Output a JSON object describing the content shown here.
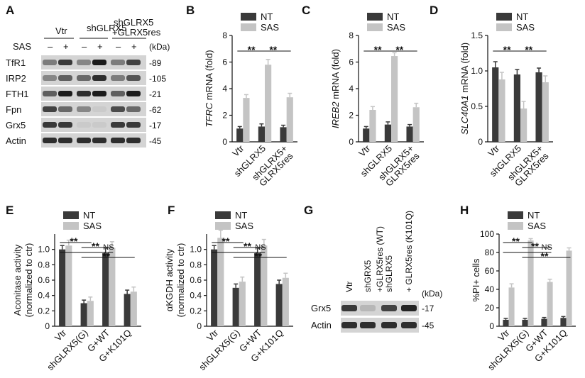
{
  "panel_letters": [
    "A",
    "B",
    "C",
    "D",
    "E",
    "F",
    "G",
    "H"
  ],
  "colors": {
    "nt": "#3a3a3a",
    "sas": "#c4c4c4",
    "band": "#111111",
    "blot_bg": "#d4d4d4"
  },
  "blotA": {
    "group_labels": [
      "Vtr",
      "shGLRX5",
      "shGLRX5",
      "+GLRX5res"
    ],
    "treatment_label": "SAS",
    "treatment_marks": [
      "–",
      "+",
      "–",
      "+",
      "–",
      "+"
    ],
    "unit": "(kDa)",
    "rows": [
      {
        "label": "TfR1",
        "kda": "89",
        "intensity": [
          0.45,
          0.8,
          0.4,
          0.95,
          0.45,
          0.75
        ]
      },
      {
        "label": "IRP2",
        "kda": "105",
        "intensity": [
          0.4,
          0.6,
          0.55,
          0.85,
          0.45,
          0.65
        ]
      },
      {
        "label": "FTH1",
        "kda": "21",
        "intensity": [
          0.6,
          0.95,
          0.85,
          0.95,
          0.6,
          0.95
        ]
      },
      {
        "label": "Fpn",
        "kda": "62",
        "intensity": [
          0.75,
          0.55,
          0.4,
          0.05,
          0.7,
          0.55
        ]
      },
      {
        "label": "Grx5",
        "kda": "17",
        "intensity": [
          0.8,
          0.8,
          0.05,
          0.05,
          0.8,
          0.8
        ]
      },
      {
        "label": "Actin",
        "kda": "45",
        "intensity": [
          0.85,
          0.85,
          0.85,
          0.85,
          0.85,
          0.85
        ]
      }
    ]
  },
  "blotG": {
    "lane_labels": [
      "Vtr",
      "shGRX5",
      "shGLRX5\n+GLRX5res (WT)",
      "+ GLRX5res (K101Q)"
    ],
    "unit": "(kDa)",
    "rows": [
      {
        "label": "Grx5",
        "kda": "17",
        "intensity": [
          0.8,
          0.15,
          0.75,
          0.9
        ]
      },
      {
        "label": "Actin",
        "kda": "45",
        "intensity": [
          0.85,
          0.85,
          0.85,
          0.85
        ]
      }
    ]
  },
  "legend": {
    "nt": "NT",
    "sas": "SAS"
  },
  "significance": {
    "double": "**",
    "ns": "NS"
  },
  "chart_data": [
    {
      "id": "B",
      "type": "bar",
      "categories": [
        "Vtr",
        "shGLRX5",
        "shGLRX5+\nGLRX5res"
      ],
      "ylabel_italic": "TFRC",
      "ylabel_rest": " mRNA (fold)",
      "ylim": [
        0,
        8
      ],
      "yticks": [
        0,
        2,
        4,
        6,
        8
      ],
      "series": [
        {
          "name": "NT",
          "values": [
            1.0,
            1.15,
            1.1
          ],
          "errors": [
            0.15,
            0.2,
            0.15
          ]
        },
        {
          "name": "SAS",
          "values": [
            3.3,
            5.8,
            3.35
          ],
          "errors": [
            0.25,
            0.4,
            0.3
          ]
        }
      ],
      "annotations": [
        {
          "text": "**",
          "from": 0,
          "to": 1
        },
        {
          "text": "**",
          "from": 1,
          "to": 2
        }
      ]
    },
    {
      "id": "C",
      "type": "bar",
      "categories": [
        "Vtr",
        "shGLRX5",
        "shGLRX5+\nGLRX5res"
      ],
      "ylabel_italic": "IREB2",
      "ylabel_rest": " mRNA (fold)",
      "ylim": [
        0,
        8
      ],
      "yticks": [
        0,
        2,
        4,
        6,
        8
      ],
      "series": [
        {
          "name": "NT",
          "values": [
            1.0,
            1.3,
            1.15
          ],
          "errors": [
            0.15,
            0.2,
            0.15
          ]
        },
        {
          "name": "SAS",
          "values": [
            2.4,
            6.45,
            2.6
          ],
          "errors": [
            0.25,
            0.25,
            0.3
          ]
        }
      ],
      "annotations": [
        {
          "text": "**",
          "from": 0,
          "to": 1
        },
        {
          "text": "**",
          "from": 1,
          "to": 2
        }
      ]
    },
    {
      "id": "D",
      "type": "bar",
      "categories": [
        "Vtr",
        "shGLRX5",
        "shGLRX5+\nGLRX5res"
      ],
      "ylabel_italic": "SLC40A1",
      "ylabel_rest": " mRNA (fold)",
      "ylim": [
        0,
        1.5
      ],
      "yticks": [
        0,
        0.5,
        1.0,
        1.5
      ],
      "series": [
        {
          "name": "NT",
          "values": [
            1.05,
            0.95,
            0.98
          ],
          "errors": [
            0.08,
            0.07,
            0.06
          ]
        },
        {
          "name": "SAS",
          "values": [
            0.88,
            0.47,
            0.84
          ],
          "errors": [
            0.1,
            0.1,
            0.09
          ]
        }
      ],
      "annotations": [
        {
          "text": "**",
          "from": 0,
          "to": 1
        },
        {
          "text": "**",
          "from": 1,
          "to": 2
        }
      ]
    },
    {
      "id": "E",
      "type": "bar",
      "categories": [
        "Vtr",
        "shGLRX5(G)",
        "G+WT",
        "G+K101Q"
      ],
      "ylabel_lines": [
        "Aconitase activity",
        "(normalized to ctr)"
      ],
      "ylim": [
        0,
        1.2
      ],
      "yticks": [
        0,
        0.2,
        0.4,
        0.6,
        0.8,
        1.0
      ],
      "series": [
        {
          "name": "NT",
          "values": [
            1.0,
            0.3,
            0.95,
            0.42
          ],
          "errors": [
            0.05,
            0.04,
            0.07,
            0.05
          ]
        },
        {
          "name": "SAS",
          "values": [
            1.05,
            0.33,
            1.02,
            0.45
          ],
          "errors": [
            0.07,
            0.05,
            0.08,
            0.06
          ]
        }
      ],
      "annotations": [
        {
          "text": "**",
          "from": 0,
          "to": 1
        },
        {
          "text": "**",
          "from": 1,
          "to": 2
        },
        {
          "text": "NS",
          "from": 0,
          "to": 2
        },
        {
          "text": "**",
          "from": 1,
          "to": 3
        }
      ]
    },
    {
      "id": "F",
      "type": "bar",
      "categories": [
        "Vtr",
        "shGLRX5(G)",
        "G+WT",
        "G+K101Q"
      ],
      "ylabel_lines": [
        "αKGDH activity",
        "(normalized to ctr)"
      ],
      "ylim": [
        0,
        1.2
      ],
      "yticks": [
        0,
        0.2,
        0.4,
        0.6,
        0.8,
        1.0
      ],
      "series": [
        {
          "name": "NT",
          "values": [
            1.0,
            0.5,
            0.95,
            0.55
          ],
          "errors": [
            0.05,
            0.05,
            0.07,
            0.05
          ]
        },
        {
          "name": "SAS",
          "values": [
            1.15,
            0.58,
            1.05,
            0.63
          ],
          "errors": [
            0.1,
            0.06,
            0.08,
            0.06
          ]
        }
      ],
      "annotations": [
        {
          "text": "**",
          "from": 0,
          "to": 1
        },
        {
          "text": "**",
          "from": 1,
          "to": 2
        },
        {
          "text": "NS",
          "from": 0,
          "to": 2
        },
        {
          "text": "**",
          "from": 1,
          "to": 3
        }
      ]
    },
    {
      "id": "H",
      "type": "bar",
      "categories": [
        "Vtr",
        "shGLRX5(G)",
        "G+WT",
        "G+K101Q"
      ],
      "ylabel_lines": [
        "%PI+ cells"
      ],
      "ylim": [
        0,
        100
      ],
      "yticks": [
        0,
        20,
        40,
        60,
        80,
        100
      ],
      "series": [
        {
          "name": "NT",
          "values": [
            7,
            7,
            8,
            9
          ],
          "errors": [
            1.5,
            1.5,
            1.5,
            1.5
          ]
        },
        {
          "name": "SAS",
          "values": [
            42,
            93,
            48,
            82
          ],
          "errors": [
            4,
            2,
            3,
            3
          ]
        }
      ],
      "annotations": [
        {
          "text": "**",
          "from": 0,
          "to": 1
        },
        {
          "text": "**",
          "from": 1,
          "to": 2
        },
        {
          "text": "NS",
          "from": 0,
          "to": 2
        },
        {
          "text": "**",
          "from": 1,
          "to": 3
        }
      ]
    }
  ]
}
